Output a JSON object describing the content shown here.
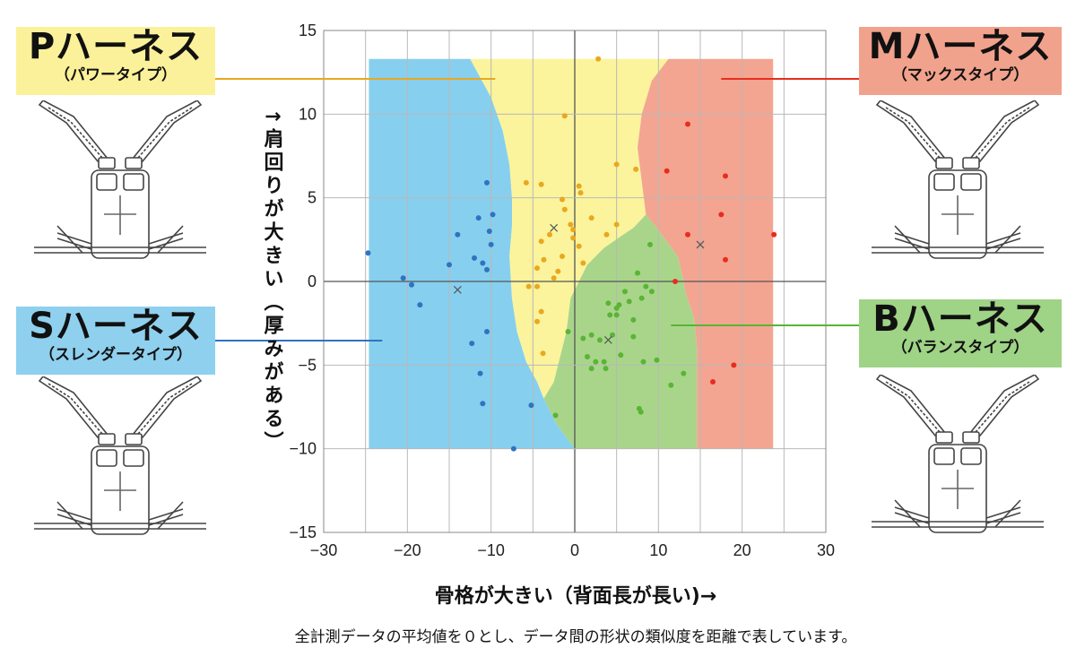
{
  "chart_data": {
    "type": "scatter",
    "xlim": [
      -30,
      30
    ],
    "ylim": [
      -15,
      15
    ],
    "x_ticks": [
      -30,
      -20,
      -10,
      0,
      10,
      20,
      30
    ],
    "y_ticks": [
      -15,
      -10,
      -5,
      0,
      5,
      10,
      15
    ],
    "x_tick_labels": [
      "−30",
      "−20",
      "−10",
      "0",
      "10",
      "20",
      "30"
    ],
    "y_tick_labels": [
      "−15",
      "−10",
      "−5",
      "0",
      "5",
      "10",
      "15"
    ],
    "xlabel": "骨格が大きい（背面長が長い)→",
    "ylabel": "↑肩回りが大きい（厚みがある）",
    "grid": true,
    "caption": "全計測データの平均値を０とし、データ間の形状の類似度を距離で表しています。",
    "series": [
      {
        "name": "Sハーネス",
        "sub": "（スレンダータイプ）",
        "color": "#2e74c0",
        "region_color": "#87cfee",
        "label_bg": "#8fd0ee",
        "center": [
          -14,
          -0.5
        ],
        "points": [
          [
            -24.7,
            1.7
          ],
          [
            -20.5,
            0.2
          ],
          [
            -19.5,
            -0.2
          ],
          [
            -18.5,
            -1.4
          ],
          [
            -15,
            1
          ],
          [
            -14,
            2.8
          ],
          [
            -12.3,
            -3.7
          ],
          [
            -12,
            1.4
          ],
          [
            -11.5,
            3.8
          ],
          [
            -11.3,
            -5.5
          ],
          [
            -11,
            -7.3
          ],
          [
            -11,
            1.1
          ],
          [
            -10.5,
            0.7
          ],
          [
            -10.5,
            -3
          ],
          [
            -10.2,
            3
          ],
          [
            -10,
            2.2
          ],
          [
            -10.5,
            5.9
          ],
          [
            -9.8,
            4
          ],
          [
            -7.3,
            -10
          ],
          [
            -5.2,
            -7.4
          ]
        ]
      },
      {
        "name": "Pハーネス",
        "sub": "（パワータイプ）",
        "color": "#e8a820",
        "region_color": "#fbf49c",
        "label_bg": "#fbf19a",
        "center": [
          -2.5,
          3.2
        ],
        "points": [
          [
            2.8,
            13.3
          ],
          [
            -1.2,
            9.9
          ],
          [
            -5.8,
            5.9
          ],
          [
            -4,
            5.8
          ],
          [
            0.5,
            5.7
          ],
          [
            0.7,
            5.3
          ],
          [
            5,
            7
          ],
          [
            7.3,
            6.7
          ],
          [
            -1.5,
            4.9
          ],
          [
            -1.2,
            4.3
          ],
          [
            2,
            3.8
          ],
          [
            -0.5,
            3.4
          ],
          [
            -0.2,
            3.1
          ],
          [
            -3,
            2.8
          ],
          [
            -0.2,
            2.6
          ],
          [
            -4,
            2.4
          ],
          [
            -1.5,
            1.5
          ],
          [
            -3.7,
            1.3
          ],
          [
            1,
            1.1
          ],
          [
            -4.5,
            0.8
          ],
          [
            -2,
            0.6
          ],
          [
            -2.5,
            0.2
          ],
          [
            -5.5,
            -0.3
          ],
          [
            -4.5,
            -0.3
          ],
          [
            -4.5,
            -2.4
          ],
          [
            -3.8,
            -4.3
          ],
          [
            -4,
            -1.8
          ],
          [
            0.5,
            2.1
          ],
          [
            3.8,
            2.8
          ],
          [
            5,
            3.4
          ]
        ]
      },
      {
        "name": "Bハーネス",
        "sub": "（バランスタイプ）",
        "color": "#5ab435",
        "region_color": "#a9d58b",
        "label_bg": "#9fd386",
        "center": [
          4,
          -3.5
        ],
        "points": [
          [
            -2.3,
            -8
          ],
          [
            -0.8,
            -3
          ],
          [
            1,
            -3.4
          ],
          [
            1.5,
            -4.5
          ],
          [
            2,
            -3.2
          ],
          [
            2,
            -5.2
          ],
          [
            2.5,
            -4.8
          ],
          [
            3,
            -3.5
          ],
          [
            3.5,
            -4.8
          ],
          [
            3.7,
            -5.2
          ],
          [
            4,
            -1.3
          ],
          [
            4.2,
            -2
          ],
          [
            4.5,
            -3.2
          ],
          [
            5,
            -1.6
          ],
          [
            5,
            -2
          ],
          [
            5.3,
            -1.4
          ],
          [
            5.5,
            -4.4
          ],
          [
            6,
            -0.6
          ],
          [
            6.5,
            -1.2
          ],
          [
            7,
            -2.3
          ],
          [
            7,
            -3.3
          ],
          [
            7.5,
            0.5
          ],
          [
            8,
            -1
          ],
          [
            8.2,
            -4.8
          ],
          [
            8.5,
            -0.3
          ],
          [
            9,
            2.2
          ],
          [
            9.2,
            -0.6
          ],
          [
            9.8,
            -4.7
          ],
          [
            11.5,
            -6.2
          ],
          [
            13,
            -5.5
          ],
          [
            7.7,
            -7.6
          ],
          [
            7.9,
            -7.8
          ]
        ]
      },
      {
        "name": "Mハーネス",
        "sub": "（マックスタイプ）",
        "color": "#e82d1e",
        "region_color": "#f3a591",
        "label_bg": "#f1a28c",
        "center": [
          15,
          2.2
        ],
        "points": [
          [
            13.5,
            9.4
          ],
          [
            11,
            6.6
          ],
          [
            18,
            6.3
          ],
          [
            17.5,
            4
          ],
          [
            13.5,
            2.8
          ],
          [
            12,
            0
          ],
          [
            18,
            1.3
          ],
          [
            23.8,
            2.8
          ],
          [
            16.5,
            -6
          ],
          [
            19,
            -5
          ]
        ]
      }
    ],
    "regions": [
      {
        "name": "S",
        "polygon": [
          [
            -24.6,
            13.3
          ],
          [
            -12.5,
            13.3
          ],
          [
            -10,
            11
          ],
          [
            -8.6,
            9
          ],
          [
            -7.8,
            7
          ],
          [
            -7.5,
            5
          ],
          [
            -7.5,
            3.3
          ],
          [
            -7.8,
            1.5
          ],
          [
            -7.5,
            -1
          ],
          [
            -6.9,
            -3
          ],
          [
            -5.8,
            -4.8
          ],
          [
            -4.5,
            -6
          ],
          [
            -3.7,
            -7
          ],
          [
            -2.2,
            -8.5
          ],
          [
            0,
            -10
          ],
          [
            -24.6,
            -10
          ]
        ]
      },
      {
        "name": "P",
        "polygon": [
          [
            -12.5,
            13.3
          ],
          [
            11.2,
            13.3
          ],
          [
            9.2,
            12
          ],
          [
            8,
            10
          ],
          [
            7.5,
            8
          ],
          [
            8,
            6
          ],
          [
            8.5,
            4
          ],
          [
            7,
            3.2
          ],
          [
            5.5,
            2.7
          ],
          [
            3.5,
            2
          ],
          [
            1.5,
            1
          ],
          [
            0.5,
            0
          ],
          [
            -0.5,
            -1
          ],
          [
            -1,
            -3
          ],
          [
            -2,
            -5
          ],
          [
            -2.5,
            -6
          ],
          [
            -3.7,
            -7
          ],
          [
            -4.5,
            -6
          ],
          [
            -5.8,
            -4.8
          ],
          [
            -6.9,
            -3
          ],
          [
            -7.5,
            -1
          ],
          [
            -7.8,
            1.5
          ],
          [
            -7.5,
            3.3
          ],
          [
            -7.5,
            5
          ],
          [
            -7.8,
            7
          ],
          [
            -8.6,
            9
          ],
          [
            -10,
            11
          ]
        ]
      },
      {
        "name": "M",
        "polygon": [
          [
            11.2,
            13.3
          ],
          [
            23.7,
            13.3
          ],
          [
            23.7,
            -10
          ],
          [
            14.6,
            -10
          ],
          [
            14.6,
            -4
          ],
          [
            14.3,
            -2.3
          ],
          [
            13.8,
            -1.5
          ],
          [
            13.3,
            -0.8
          ],
          [
            13,
            0
          ],
          [
            12.3,
            1.5
          ],
          [
            9.8,
            3.2
          ],
          [
            8.5,
            4
          ],
          [
            8,
            6
          ],
          [
            7.5,
            8
          ],
          [
            8,
            10
          ],
          [
            9.2,
            12
          ]
        ]
      },
      {
        "name": "B",
        "polygon": [
          [
            0,
            -10
          ],
          [
            14.6,
            -10
          ],
          [
            14.6,
            -4
          ],
          [
            14.3,
            -2.3
          ],
          [
            13.8,
            -1.5
          ],
          [
            13.3,
            -0.8
          ],
          [
            13,
            0
          ],
          [
            12.3,
            1.5
          ],
          [
            9.8,
            3.2
          ],
          [
            8.5,
            4
          ],
          [
            7,
            3.2
          ],
          [
            5.5,
            2.7
          ],
          [
            3.5,
            2
          ],
          [
            1.5,
            1
          ],
          [
            0.5,
            0
          ],
          [
            -0.5,
            -1
          ],
          [
            -1,
            -3
          ],
          [
            -2,
            -5
          ],
          [
            -2.5,
            -6
          ],
          [
            -3.7,
            -7
          ],
          [
            -2.2,
            -8.5
          ]
        ]
      }
    ]
  }
}
